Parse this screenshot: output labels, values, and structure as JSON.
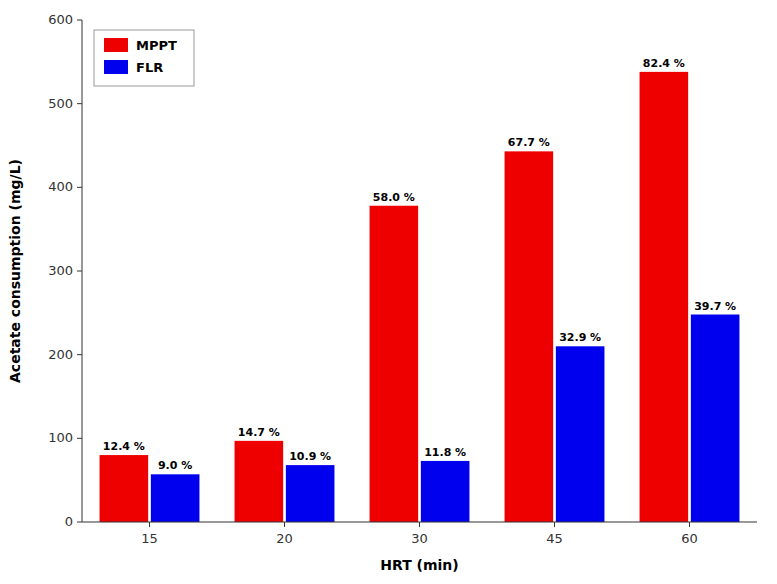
{
  "chart_data": {
    "type": "bar",
    "categories": [
      "15",
      "20",
      "30",
      "45",
      "60"
    ],
    "series": [
      {
        "name": "MPPT",
        "color": "#EE0000",
        "values": [
          80,
          97,
          378,
          443,
          538
        ],
        "annotations": [
          "12.4 %",
          "14.7 %",
          "58.0 %",
          "67.7 %",
          "82.4 %"
        ]
      },
      {
        "name": "FLR",
        "color": "#0000EE",
        "values": [
          57,
          68,
          73,
          210,
          248
        ],
        "annotations": [
          "9.0 %",
          "10.9 %",
          "11.8 %",
          "32.9 %",
          "39.7 %"
        ]
      }
    ],
    "xlabel": "HRT (min)",
    "ylabel": "Acetate consumption (mg/L)",
    "ylim": [
      0,
      600
    ],
    "yticks": [
      0,
      100,
      200,
      300,
      400,
      500,
      600
    ],
    "grid": false,
    "legend": "upper left"
  }
}
